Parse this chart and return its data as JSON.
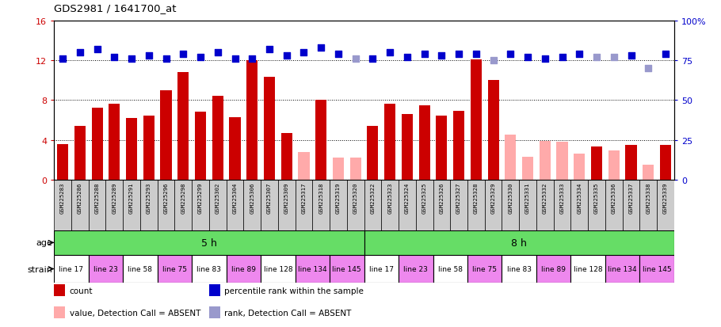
{
  "title": "GDS2981 / 1641700_at",
  "samples": [
    "GSM225283",
    "GSM225286",
    "GSM225288",
    "GSM225289",
    "GSM225291",
    "GSM225293",
    "GSM225296",
    "GSM225298",
    "GSM225299",
    "GSM225302",
    "GSM225304",
    "GSM225306",
    "GSM225307",
    "GSM225309",
    "GSM225317",
    "GSM225318",
    "GSM225319",
    "GSM225320",
    "GSM225322",
    "GSM225323",
    "GSM225324",
    "GSM225325",
    "GSM225326",
    "GSM225327",
    "GSM225328",
    "GSM225329",
    "GSM225330",
    "GSM225331",
    "GSM225332",
    "GSM225333",
    "GSM225334",
    "GSM225335",
    "GSM225336",
    "GSM225337",
    "GSM225338",
    "GSM225339"
  ],
  "count_values": [
    3.6,
    5.4,
    7.2,
    7.6,
    6.2,
    6.4,
    9.0,
    10.8,
    6.8,
    8.4,
    6.3,
    12.0,
    10.3,
    4.7,
    null,
    8.0,
    null,
    null,
    5.4,
    7.6,
    6.6,
    7.5,
    6.4,
    6.9,
    12.1,
    10.0,
    null,
    null,
    null,
    null,
    null,
    3.3,
    null,
    3.5,
    null,
    3.5
  ],
  "count_absent": [
    null,
    null,
    null,
    null,
    null,
    null,
    null,
    null,
    null,
    null,
    null,
    null,
    null,
    null,
    2.8,
    null,
    2.2,
    2.2,
    null,
    null,
    null,
    null,
    null,
    null,
    null,
    null,
    4.5,
    2.3,
    3.9,
    3.8,
    2.6,
    null,
    2.9,
    null,
    1.5,
    null
  ],
  "rank_values": [
    76,
    80,
    82,
    77,
    76,
    78,
    76,
    79,
    77,
    80,
    76,
    76,
    82,
    78,
    80,
    83,
    79,
    null,
    76,
    80,
    77,
    79,
    78,
    79,
    79,
    null,
    79,
    77,
    76,
    77,
    79,
    null,
    null,
    78,
    null,
    79
  ],
  "rank_absent": [
    null,
    null,
    null,
    null,
    null,
    null,
    null,
    null,
    null,
    null,
    null,
    null,
    null,
    null,
    null,
    null,
    null,
    76,
    null,
    null,
    null,
    null,
    null,
    null,
    null,
    75,
    null,
    null,
    null,
    null,
    null,
    77,
    77,
    null,
    70,
    null
  ],
  "age_groups": [
    {
      "label": "5 h",
      "start": 0,
      "end": 18
    },
    {
      "label": "8 h",
      "start": 18,
      "end": 36
    }
  ],
  "strain_groups": [
    {
      "label": "line 17",
      "start": 0,
      "end": 2,
      "color": "#FFFFFF"
    },
    {
      "label": "line 23",
      "start": 2,
      "end": 4,
      "color": "#EE88EE"
    },
    {
      "label": "line 58",
      "start": 4,
      "end": 6,
      "color": "#FFFFFF"
    },
    {
      "label": "line 75",
      "start": 6,
      "end": 8,
      "color": "#EE88EE"
    },
    {
      "label": "line 83",
      "start": 8,
      "end": 10,
      "color": "#FFFFFF"
    },
    {
      "label": "line 89",
      "start": 10,
      "end": 12,
      "color": "#EE88EE"
    },
    {
      "label": "line 128",
      "start": 12,
      "end": 14,
      "color": "#FFFFFF"
    },
    {
      "label": "line 134",
      "start": 14,
      "end": 16,
      "color": "#EE88EE"
    },
    {
      "label": "line 145",
      "start": 16,
      "end": 18,
      "color": "#EE88EE"
    },
    {
      "label": "line 17",
      "start": 18,
      "end": 20,
      "color": "#FFFFFF"
    },
    {
      "label": "line 23",
      "start": 20,
      "end": 22,
      "color": "#EE88EE"
    },
    {
      "label": "line 58",
      "start": 22,
      "end": 24,
      "color": "#FFFFFF"
    },
    {
      "label": "line 75",
      "start": 24,
      "end": 26,
      "color": "#EE88EE"
    },
    {
      "label": "line 83",
      "start": 26,
      "end": 28,
      "color": "#FFFFFF"
    },
    {
      "label": "line 89",
      "start": 28,
      "end": 30,
      "color": "#EE88EE"
    },
    {
      "label": "line 128",
      "start": 30,
      "end": 32,
      "color": "#FFFFFF"
    },
    {
      "label": "line 134",
      "start": 32,
      "end": 34,
      "color": "#EE88EE"
    },
    {
      "label": "line 145",
      "start": 34,
      "end": 36,
      "color": "#EE88EE"
    }
  ],
  "ylim_left": [
    0,
    16
  ],
  "ylim_right": [
    0,
    100
  ],
  "bar_color_present": "#CC0000",
  "bar_color_absent": "#FFAAAA",
  "rank_color_present": "#0000CC",
  "rank_color_absent": "#9999CC",
  "age_color": "#66DD66",
  "bg_color": "#FFFFFF",
  "tick_color_left": "#CC0000",
  "tick_color_right": "#0000CC",
  "label_box_color": "#CCCCCC"
}
